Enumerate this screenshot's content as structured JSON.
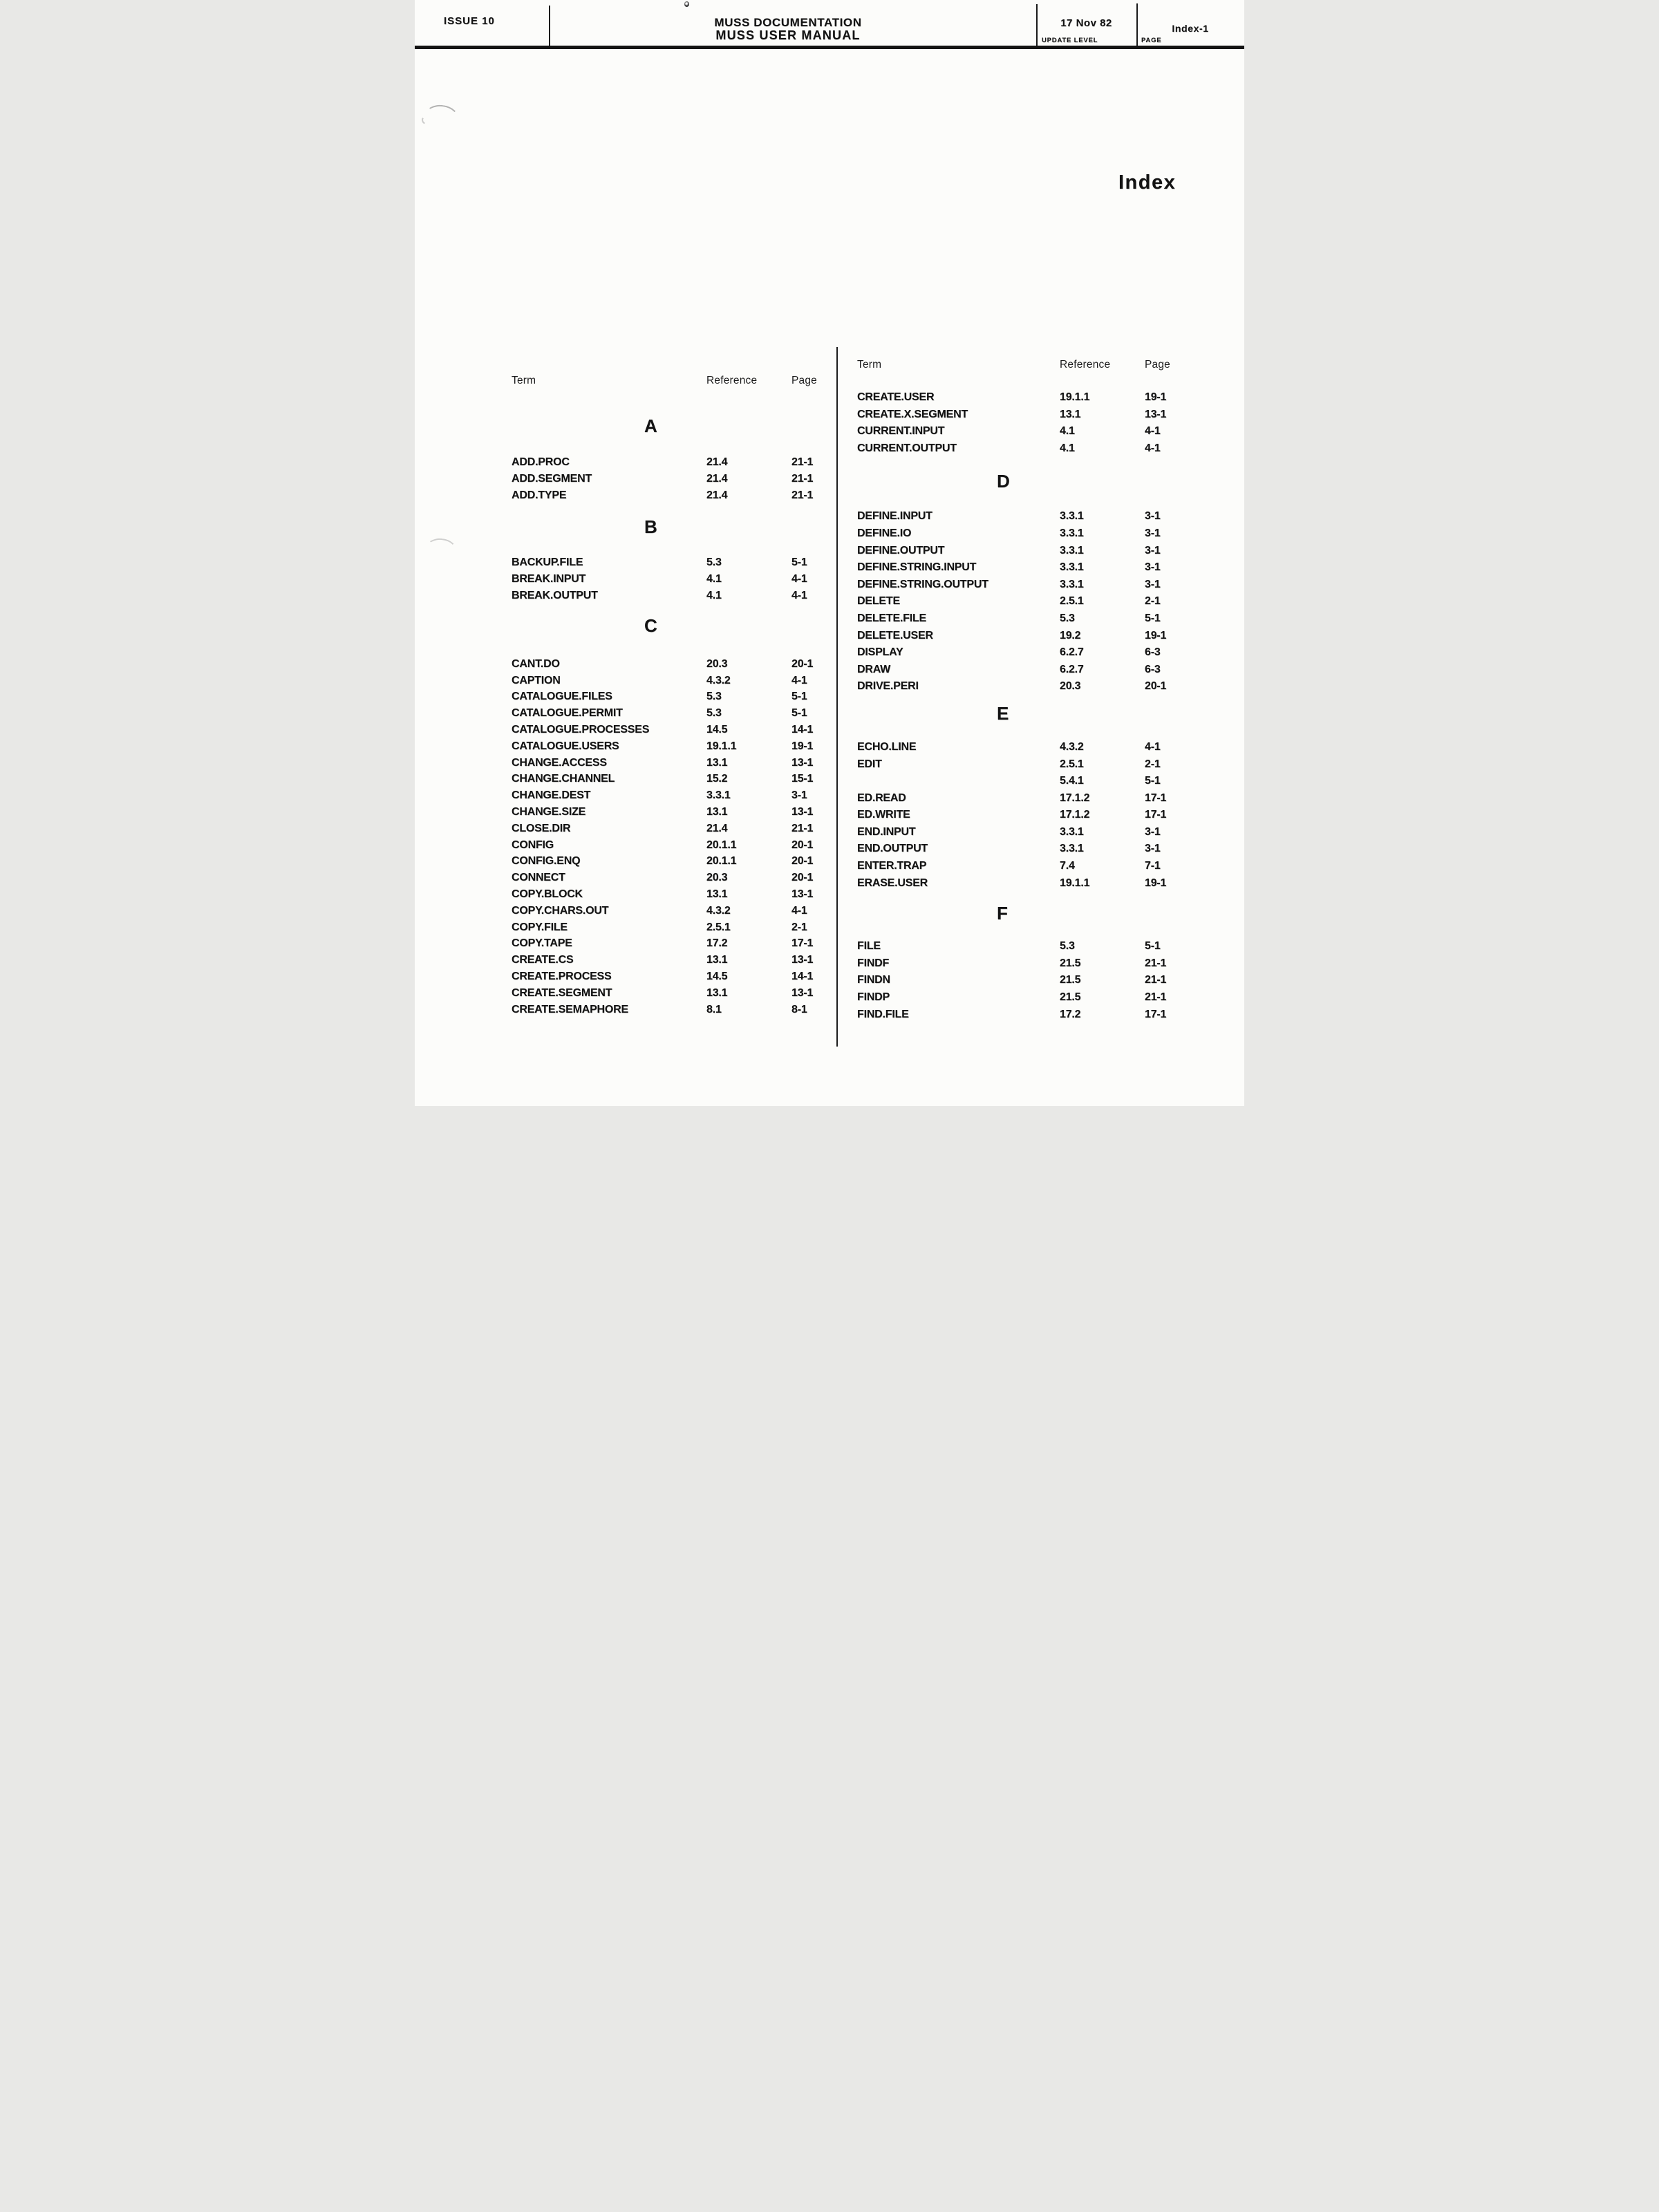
{
  "header": {
    "issue": "ISSUE 10",
    "doc_title_line1": "MUSS DOCUMENTATION",
    "doc_title_line2": "MUSS USER MANUAL",
    "update_level_value": "17 Nov 82",
    "update_level_label": "UPDATE LEVEL",
    "page_value": "Index-1",
    "page_label": "PAGE"
  },
  "page_title": "Index",
  "table_headers": {
    "term": "Term",
    "reference": "Reference",
    "page": "Page"
  },
  "left_column": {
    "sections": [
      {
        "letter": "A",
        "rows": [
          {
            "term": "ADD.PROC",
            "ref": "21.4",
            "page": "21-1"
          },
          {
            "term": "ADD.SEGMENT",
            "ref": "21.4",
            "page": "21-1"
          },
          {
            "term": "ADD.TYPE",
            "ref": "21.4",
            "page": "21-1"
          }
        ]
      },
      {
        "letter": "B",
        "rows": [
          {
            "term": "BACKUP.FILE",
            "ref": "5.3",
            "page": "5-1"
          },
          {
            "term": "BREAK.INPUT",
            "ref": "4.1",
            "page": "4-1"
          },
          {
            "term": "BREAK.OUTPUT",
            "ref": "4.1",
            "page": "4-1"
          }
        ]
      },
      {
        "letter": "C",
        "rows": [
          {
            "term": "CANT.DO",
            "ref": "20.3",
            "page": "20-1"
          },
          {
            "term": "CAPTION",
            "ref": "4.3.2",
            "page": "4-1"
          },
          {
            "term": "CATALOGUE.FILES",
            "ref": "5.3",
            "page": "5-1"
          },
          {
            "term": "CATALOGUE.PERMIT",
            "ref": "5.3",
            "page": "5-1"
          },
          {
            "term": "CATALOGUE.PROCESSES",
            "ref": "14.5",
            "page": "14-1"
          },
          {
            "term": "CATALOGUE.USERS",
            "ref": "19.1.1",
            "page": "19-1"
          },
          {
            "term": "CHANGE.ACCESS",
            "ref": "13.1",
            "page": "13-1"
          },
          {
            "term": "CHANGE.CHANNEL",
            "ref": "15.2",
            "page": "15-1"
          },
          {
            "term": "CHANGE.DEST",
            "ref": "3.3.1",
            "page": "3-1"
          },
          {
            "term": "CHANGE.SIZE",
            "ref": "13.1",
            "page": "13-1"
          },
          {
            "term": "CLOSE.DIR",
            "ref": "21.4",
            "page": "21-1"
          },
          {
            "term": "CONFIG",
            "ref": "20.1.1",
            "page": "20-1"
          },
          {
            "term": "CONFIG.ENQ",
            "ref": "20.1.1",
            "page": "20-1"
          },
          {
            "term": "CONNECT",
            "ref": "20.3",
            "page": "20-1"
          },
          {
            "term": "COPY.BLOCK",
            "ref": "13.1",
            "page": "13-1"
          },
          {
            "term": "COPY.CHARS.OUT",
            "ref": "4.3.2",
            "page": "4-1"
          },
          {
            "term": "COPY.FILE",
            "ref": "2.5.1",
            "page": "2-1"
          },
          {
            "term": "COPY.TAPE",
            "ref": "17.2",
            "page": "17-1"
          },
          {
            "term": "CREATE.CS",
            "ref": "13.1",
            "page": "13-1"
          },
          {
            "term": "CREATE.PROCESS",
            "ref": "14.5",
            "page": "14-1"
          },
          {
            "term": "CREATE.SEGMENT",
            "ref": "13.1",
            "page": "13-1"
          },
          {
            "term": "CREATE.SEMAPHORE",
            "ref": "8.1",
            "page": "8-1"
          }
        ]
      }
    ]
  },
  "right_column": {
    "lead_rows": [
      {
        "term": "CREATE.USER",
        "ref": "19.1.1",
        "page": "19-1"
      },
      {
        "term": "CREATE.X.SEGMENT",
        "ref": "13.1",
        "page": "13-1"
      },
      {
        "term": "CURRENT.INPUT",
        "ref": "4.1",
        "page": "4-1"
      },
      {
        "term": "CURRENT.OUTPUT",
        "ref": "4.1",
        "page": "4-1"
      }
    ],
    "sections": [
      {
        "letter": "D",
        "rows": [
          {
            "term": "DEFINE.INPUT",
            "ref": "3.3.1",
            "page": "3-1"
          },
          {
            "term": "DEFINE.IO",
            "ref": "3.3.1",
            "page": "3-1"
          },
          {
            "term": "DEFINE.OUTPUT",
            "ref": "3.3.1",
            "page": "3-1"
          },
          {
            "term": "DEFINE.STRING.INPUT",
            "ref": "3.3.1",
            "page": "3-1"
          },
          {
            "term": "DEFINE.STRING.OUTPUT",
            "ref": "3.3.1",
            "page": "3-1"
          },
          {
            "term": "DELETE",
            "ref": "2.5.1",
            "page": "2-1"
          },
          {
            "term": "DELETE.FILE",
            "ref": "5.3",
            "page": "5-1"
          },
          {
            "term": "DELETE.USER",
            "ref": "19.2",
            "page": "19-1"
          },
          {
            "term": "DISPLAY",
            "ref": "6.2.7",
            "page": "6-3"
          },
          {
            "term": "DRAW",
            "ref": "6.2.7",
            "page": "6-3"
          },
          {
            "term": "DRIVE.PERI",
            "ref": "20.3",
            "page": "20-1"
          }
        ]
      },
      {
        "letter": "E",
        "rows": [
          {
            "term": "ECHO.LINE",
            "ref": "4.3.2",
            "page": "4-1"
          },
          {
            "term": "EDIT",
            "ref": "2.5.1",
            "page": "2-1"
          },
          {
            "term": "",
            "ref": "5.4.1",
            "page": "5-1"
          },
          {
            "term": "ED.READ",
            "ref": "17.1.2",
            "page": "17-1"
          },
          {
            "term": "ED.WRITE",
            "ref": "17.1.2",
            "page": "17-1"
          },
          {
            "term": "END.INPUT",
            "ref": "3.3.1",
            "page": "3-1"
          },
          {
            "term": "END.OUTPUT",
            "ref": "3.3.1",
            "page": "3-1"
          },
          {
            "term": "ENTER.TRAP",
            "ref": "7.4",
            "page": "7-1"
          },
          {
            "term": "ERASE.USER",
            "ref": "19.1.1",
            "page": "19-1"
          }
        ]
      },
      {
        "letter": "F",
        "rows": [
          {
            "term": "FILE",
            "ref": "5.3",
            "page": "5-1"
          },
          {
            "term": "FINDF",
            "ref": "21.5",
            "page": "21-1"
          },
          {
            "term": "FINDN",
            "ref": "21.5",
            "page": "21-1"
          },
          {
            "term": "FINDP",
            "ref": "21.5",
            "page": "21-1"
          },
          {
            "term": "FIND.FILE",
            "ref": "17.2",
            "page": "17-1"
          }
        ]
      }
    ]
  }
}
